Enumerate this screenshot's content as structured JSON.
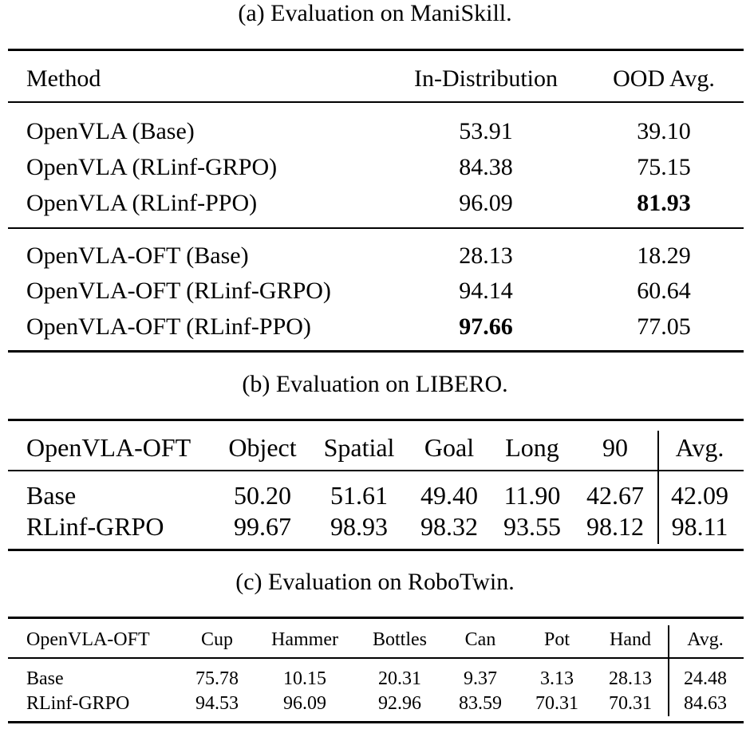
{
  "tables": {
    "maniskill": {
      "caption": "(a) Evaluation on ManiSkill.",
      "headers": [
        "Method",
        "In-Distribution",
        "OOD Avg."
      ],
      "rows": [
        [
          "OpenVLA (Base)",
          "53.91",
          "39.10"
        ],
        [
          "OpenVLA (RLinf-GRPO)",
          "84.38",
          "75.15"
        ],
        [
          "OpenVLA (RLinf-PPO)",
          "96.09",
          "81.93"
        ],
        [
          "OpenVLA-OFT (Base)",
          "28.13",
          "18.29"
        ],
        [
          "OpenVLA-OFT (RLinf-GRPO)",
          "94.14",
          "60.64"
        ],
        [
          "OpenVLA-OFT (RLinf-PPO)",
          "97.66",
          "77.05"
        ]
      ]
    },
    "libero": {
      "caption": "(b) Evaluation on LIBERO.",
      "headers": [
        "OpenVLA-OFT",
        "Object",
        "Spatial",
        "Goal",
        "Long",
        "90",
        "Avg."
      ],
      "rows": [
        [
          "Base",
          "50.20",
          "51.61",
          "49.40",
          "11.90",
          "42.67",
          "42.09"
        ],
        [
          "RLinf-GRPO",
          "99.67",
          "98.93",
          "98.32",
          "93.55",
          "98.12",
          "98.11"
        ]
      ]
    },
    "robotwin": {
      "caption": "(c) Evaluation on RoboTwin.",
      "headers": [
        "OpenVLA-OFT",
        "Cup",
        "Hammer",
        "Bottles",
        "Can",
        "Pot",
        "Hand",
        "Avg."
      ],
      "rows": [
        [
          "Base",
          "75.78",
          "10.15",
          "20.31",
          "9.37",
          "3.13",
          "28.13",
          "24.48"
        ],
        [
          "RLinf-GRPO",
          "94.53",
          "96.09",
          "92.96",
          "83.59",
          "70.31",
          "70.31",
          "84.63"
        ]
      ]
    }
  }
}
